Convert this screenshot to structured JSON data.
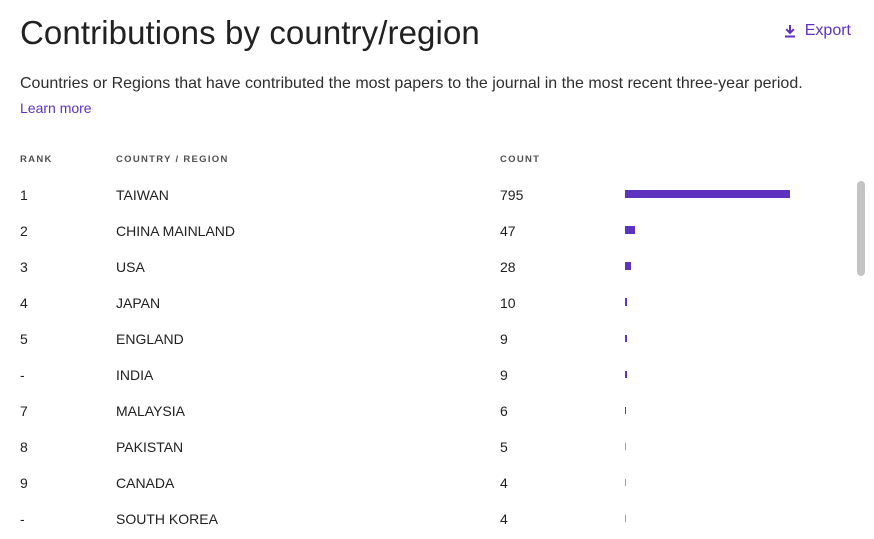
{
  "header": {
    "title": "Contributions by country/region",
    "export_label": "Export",
    "export_icon": "download-icon"
  },
  "description": {
    "text": "Countries or Regions that have contributed the most papers to the journal in the most recent three-year period.",
    "link_label": "Learn more"
  },
  "table": {
    "headers": {
      "rank": "RANK",
      "country": "COUNTRY / REGION",
      "count": "COUNT"
    },
    "rows": [
      {
        "rank": "1",
        "country": "TAIWAN",
        "count": "795"
      },
      {
        "rank": "2",
        "country": "CHINA MAINLAND",
        "count": "47"
      },
      {
        "rank": "3",
        "country": "USA",
        "count": "28"
      },
      {
        "rank": "4",
        "country": "JAPAN",
        "count": "10"
      },
      {
        "rank": "5",
        "country": "ENGLAND",
        "count": "9"
      },
      {
        "rank": "-",
        "country": "INDIA",
        "count": "9"
      },
      {
        "rank": "7",
        "country": "MALAYSIA",
        "count": "6"
      },
      {
        "rank": "8",
        "country": "PAKISTAN",
        "count": "5"
      },
      {
        "rank": "9",
        "country": "CANADA",
        "count": "4"
      },
      {
        "rank": "-",
        "country": "SOUTH KOREA",
        "count": "4"
      }
    ],
    "bar_color": "#5e33bf"
  },
  "colors": {
    "accent": "#5e33bf",
    "text": "#212121"
  }
}
